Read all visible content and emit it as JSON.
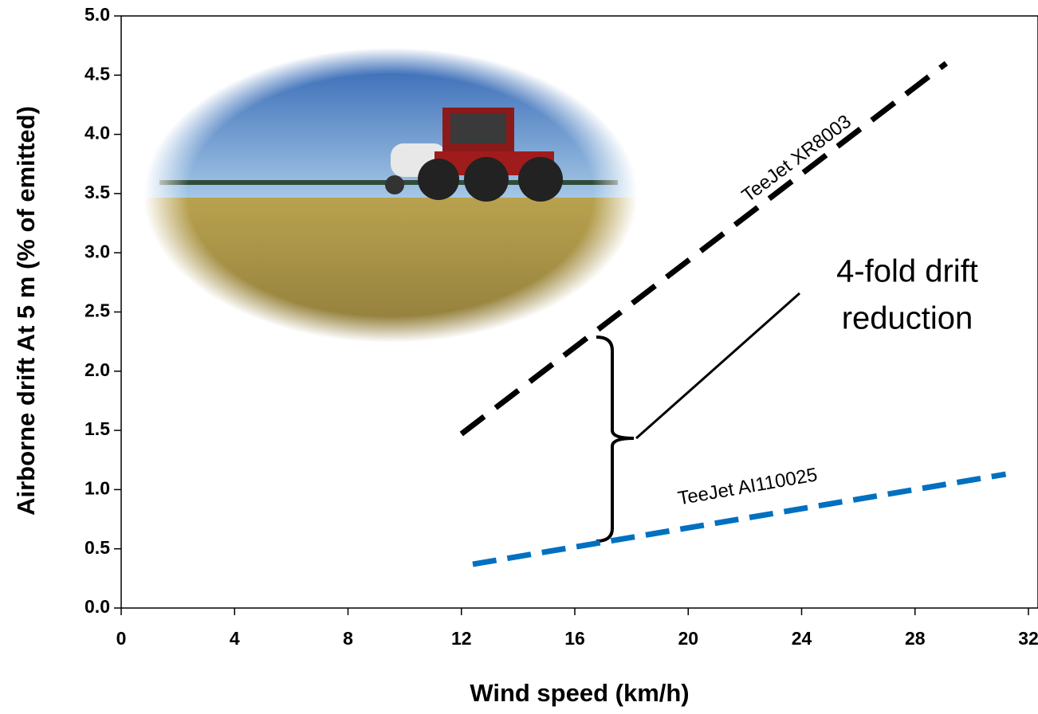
{
  "chart_data": {
    "type": "line",
    "xlabel": "Wind speed (km/h)",
    "ylabel": "Airborne drift At 5 m (% of emitted)",
    "xlim": [
      0,
      32
    ],
    "xticks": [
      0,
      4,
      8,
      12,
      16,
      20,
      24,
      28,
      32
    ],
    "ylim": [
      0,
      5
    ],
    "yticks": [
      {
        "value": 0,
        "label": "0.0"
      },
      0.5,
      {
        "value": 1,
        "label": "1.0"
      },
      1.5,
      {
        "value": 2,
        "label": "2.0"
      },
      2.5,
      {
        "value": 3,
        "label": "3.0"
      },
      3.5,
      {
        "value": 4,
        "label": "4.0"
      },
      4.5,
      {
        "value": 5,
        "label": "5.0"
      }
    ],
    "series": [
      {
        "name": "TeeJet XR8003",
        "color": "#000000",
        "x": [
          12.0,
          29.1
        ],
        "values": [
          1.47,
          4.6
        ]
      },
      {
        "name": "TeeJet AI110025",
        "color": "#0070c0",
        "x": [
          12.4,
          31.2
        ],
        "values": [
          0.37,
          1.13
        ]
      }
    ],
    "annotation": [
      "4-fold drift",
      "reduction"
    ]
  }
}
